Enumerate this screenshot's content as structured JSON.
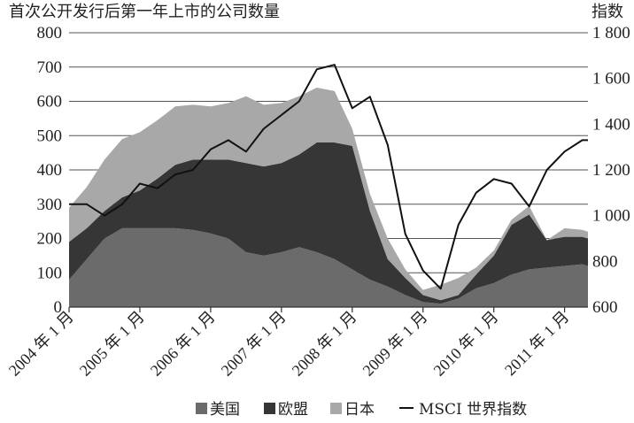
{
  "chart_data": {
    "type": "area",
    "title": "首次公开发行后第一年上市的公司数量",
    "right_axis_title": "指数",
    "ylim_left": [
      0,
      800
    ],
    "yticks_left": [
      "0",
      "100",
      "200",
      "300",
      "400",
      "500",
      "600",
      "700",
      "800"
    ],
    "ylim_right": [
      600,
      1800
    ],
    "yticks_right": [
      "600",
      "800",
      "1 000",
      "1 200",
      "1 400",
      "1 600",
      "1 800"
    ],
    "xlim": [
      2004.0,
      2011.33
    ],
    "xticks": [
      {
        "x": 2004.0,
        "label": "2004 年 1 月"
      },
      {
        "x": 2005.0,
        "label": "2005 年 1 月"
      },
      {
        "x": 2006.0,
        "label": "2006 年 1 月"
      },
      {
        "x": 2007.0,
        "label": "2007 年 1 月"
      },
      {
        "x": 2008.0,
        "label": "2008 年 1 月"
      },
      {
        "x": 2009.0,
        "label": "2009 年 1 月"
      },
      {
        "x": 2010.0,
        "label": "2010 年 1 月"
      },
      {
        "x": 2011.0,
        "label": "2011 年 1 月"
      }
    ],
    "grid": true,
    "legend_position": "bottom",
    "x": [
      2004.0,
      2004.25,
      2004.5,
      2004.75,
      2005.0,
      2005.25,
      2005.5,
      2005.75,
      2006.0,
      2006.25,
      2006.5,
      2006.75,
      2007.0,
      2007.25,
      2007.5,
      2007.75,
      2008.0,
      2008.25,
      2008.5,
      2008.75,
      2009.0,
      2009.25,
      2009.5,
      2009.75,
      2010.0,
      2010.25,
      2010.5,
      2010.75,
      2011.0,
      2011.25,
      2011.33
    ],
    "series": [
      {
        "name": "美国",
        "kind": "area",
        "color": "#6b6b6b",
        "values": [
          80,
          140,
          200,
          230,
          230,
          230,
          230,
          225,
          215,
          200,
          160,
          150,
          160,
          175,
          160,
          140,
          110,
          80,
          60,
          35,
          15,
          10,
          25,
          55,
          70,
          95,
          110,
          115,
          120,
          125,
          120
        ]
      },
      {
        "name": "欧盟",
        "kind": "area",
        "color": "#363636",
        "values": [
          110,
          90,
          80,
          90,
          110,
          145,
          185,
          205,
          215,
          230,
          260,
          260,
          260,
          270,
          320,
          340,
          360,
          200,
          80,
          50,
          20,
          10,
          10,
          40,
          80,
          145,
          160,
          80,
          85,
          80,
          80
        ]
      },
      {
        "name": "日本",
        "kind": "area",
        "color": "#a8a8a8",
        "values": [
          100,
          120,
          150,
          170,
          170,
          170,
          170,
          160,
          155,
          165,
          195,
          180,
          175,
          170,
          160,
          150,
          50,
          50,
          60,
          25,
          15,
          45,
          50,
          20,
          15,
          15,
          25,
          0,
          25,
          20,
          20
        ]
      },
      {
        "name": "MSCI 世界指数",
        "kind": "line",
        "axis": "right",
        "color": "#111111",
        "values": [
          1050,
          1050,
          1000,
          1050,
          1140,
          1120,
          1180,
          1200,
          1290,
          1330,
          1280,
          1380,
          1440,
          1500,
          1640,
          1660,
          1470,
          1520,
          1310,
          920,
          760,
          680,
          960,
          1100,
          1160,
          1140,
          1040,
          1200,
          1280,
          1330,
          1330
        ]
      }
    ]
  },
  "legend": [
    {
      "label": "美国",
      "kind": "swatch",
      "color": "#6b6b6b"
    },
    {
      "label": "欧盟",
      "kind": "swatch",
      "color": "#363636"
    },
    {
      "label": "日本",
      "kind": "swatch",
      "color": "#a8a8a8"
    },
    {
      "label": "MSCI 世界指数",
      "kind": "line",
      "color": "#111111"
    }
  ]
}
